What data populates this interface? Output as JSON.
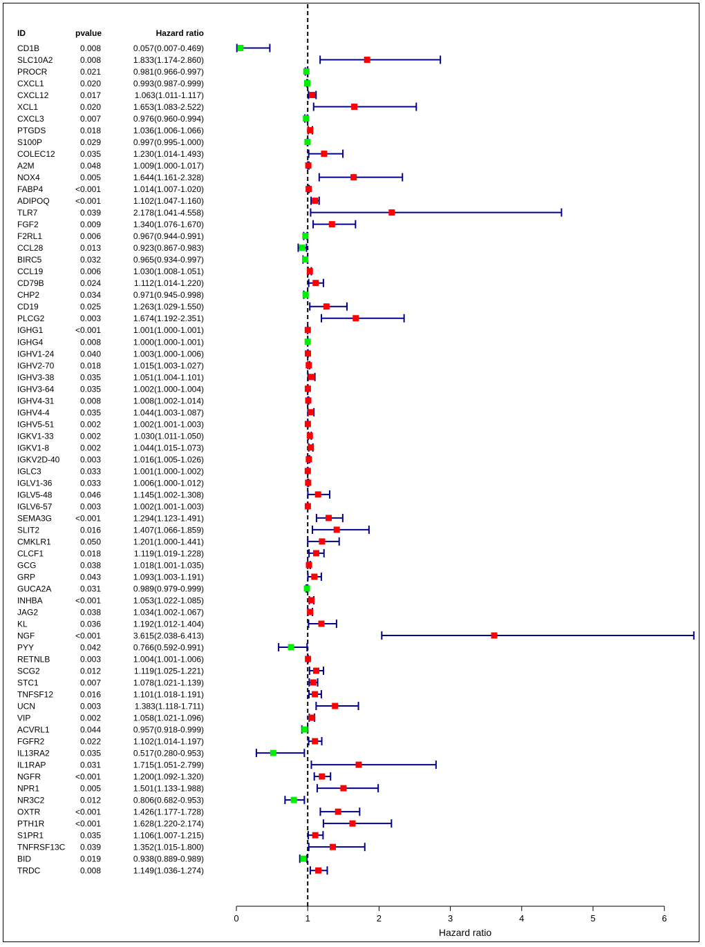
{
  "chart_data": {
    "type": "forest",
    "xlabel": "Hazard ratio",
    "xlim": [
      0,
      6.5
    ],
    "xticks": [
      0,
      1,
      2,
      3,
      4,
      5,
      6
    ],
    "xtick_labels": [
      "0",
      "1",
      "2",
      "3",
      "4",
      "5",
      "6"
    ],
    "reference_line": 1,
    "headers": {
      "id": "ID",
      "pvalue": "pvalue",
      "hr": "Hazard ratio"
    },
    "colors": {
      "risk": "#ff0000",
      "protective": "#00ee00",
      "ci": "#00008b",
      "text": "#000000"
    },
    "rows": [
      {
        "id": "CD1B",
        "pvalue": "0.008",
        "hr_text": "0.057(0.007-0.469)",
        "hr": 0.057,
        "lo": 0.007,
        "hi": 0.469
      },
      {
        "id": "SLC10A2",
        "pvalue": "0.008",
        "hr_text": "1.833(1.174-2.860)",
        "hr": 1.833,
        "lo": 1.174,
        "hi": 2.86
      },
      {
        "id": "PROCR",
        "pvalue": "0.021",
        "hr_text": "0.981(0.966-0.997)",
        "hr": 0.981,
        "lo": 0.966,
        "hi": 0.997
      },
      {
        "id": "CXCL1",
        "pvalue": "0.020",
        "hr_text": "0.993(0.987-0.999)",
        "hr": 0.993,
        "lo": 0.987,
        "hi": 0.999
      },
      {
        "id": "CXCL12",
        "pvalue": "0.017",
        "hr_text": "1.063(1.011-1.117)",
        "hr": 1.063,
        "lo": 1.011,
        "hi": 1.117
      },
      {
        "id": "XCL1",
        "pvalue": "0.020",
        "hr_text": "1.653(1.083-2.522)",
        "hr": 1.653,
        "lo": 1.083,
        "hi": 2.522
      },
      {
        "id": "CXCL3",
        "pvalue": "0.007",
        "hr_text": "0.976(0.960-0.994)",
        "hr": 0.976,
        "lo": 0.96,
        "hi": 0.994
      },
      {
        "id": "PTGDS",
        "pvalue": "0.018",
        "hr_text": "1.036(1.006-1.066)",
        "hr": 1.036,
        "lo": 1.006,
        "hi": 1.066
      },
      {
        "id": "S100P",
        "pvalue": "0.029",
        "hr_text": "0.997(0.995-1.000)",
        "hr": 0.997,
        "lo": 0.995,
        "hi": 1.0
      },
      {
        "id": "COLEC12",
        "pvalue": "0.035",
        "hr_text": "1.230(1.014-1.493)",
        "hr": 1.23,
        "lo": 1.014,
        "hi": 1.493
      },
      {
        "id": "A2M",
        "pvalue": "0.048",
        "hr_text": "1.009(1.000-1.017)",
        "hr": 1.009,
        "lo": 1.0,
        "hi": 1.017
      },
      {
        "id": "NOX4",
        "pvalue": "0.005",
        "hr_text": "1.644(1.161-2.328)",
        "hr": 1.644,
        "lo": 1.161,
        "hi": 2.328
      },
      {
        "id": "FABP4",
        "pvalue": "<0.001",
        "hr_text": "1.014(1.007-1.020)",
        "hr": 1.014,
        "lo": 1.007,
        "hi": 1.02
      },
      {
        "id": "ADIPOQ",
        "pvalue": "<0.001",
        "hr_text": "1.102(1.047-1.160)",
        "hr": 1.102,
        "lo": 1.047,
        "hi": 1.16
      },
      {
        "id": "TLR7",
        "pvalue": "0.039",
        "hr_text": "2.178(1.041-4.558)",
        "hr": 2.178,
        "lo": 1.041,
        "hi": 4.558
      },
      {
        "id": "FGF2",
        "pvalue": "0.009",
        "hr_text": "1.340(1.076-1.670)",
        "hr": 1.34,
        "lo": 1.076,
        "hi": 1.67
      },
      {
        "id": "F2RL1",
        "pvalue": "0.006",
        "hr_text": "0.967(0.944-0.991)",
        "hr": 0.967,
        "lo": 0.944,
        "hi": 0.991
      },
      {
        "id": "CCL28",
        "pvalue": "0.013",
        "hr_text": "0.923(0.867-0.983)",
        "hr": 0.923,
        "lo": 0.867,
        "hi": 0.983
      },
      {
        "id": "BIRC5",
        "pvalue": "0.032",
        "hr_text": "0.965(0.934-0.997)",
        "hr": 0.965,
        "lo": 0.934,
        "hi": 0.997
      },
      {
        "id": "CCL19",
        "pvalue": "0.006",
        "hr_text": "1.030(1.008-1.051)",
        "hr": 1.03,
        "lo": 1.008,
        "hi": 1.051
      },
      {
        "id": "CD79B",
        "pvalue": "0.024",
        "hr_text": "1.112(1.014-1.220)",
        "hr": 1.112,
        "lo": 1.014,
        "hi": 1.22
      },
      {
        "id": "CHP2",
        "pvalue": "0.034",
        "hr_text": "0.971(0.945-0.998)",
        "hr": 0.971,
        "lo": 0.945,
        "hi": 0.998
      },
      {
        "id": "CD19",
        "pvalue": "0.025",
        "hr_text": "1.263(1.029-1.550)",
        "hr": 1.263,
        "lo": 1.029,
        "hi": 1.55
      },
      {
        "id": "PLCG2",
        "pvalue": "0.003",
        "hr_text": "1.674(1.192-2.351)",
        "hr": 1.674,
        "lo": 1.192,
        "hi": 2.351
      },
      {
        "id": "IGHG1",
        "pvalue": "<0.001",
        "hr_text": "1.001(1.000-1.001)",
        "hr": 1.001,
        "lo": 1.0,
        "hi": 1.001
      },
      {
        "id": "IGHG4",
        "pvalue": "0.008",
        "hr_text": "1.000(1.000-1.001)",
        "hr": 1.0,
        "lo": 1.0,
        "hi": 1.001
      },
      {
        "id": "IGHV1-24",
        "pvalue": "0.040",
        "hr_text": "1.003(1.000-1.006)",
        "hr": 1.003,
        "lo": 1.0,
        "hi": 1.006
      },
      {
        "id": "IGHV2-70",
        "pvalue": "0.018",
        "hr_text": "1.015(1.003-1.027)",
        "hr": 1.015,
        "lo": 1.003,
        "hi": 1.027
      },
      {
        "id": "IGHV3-38",
        "pvalue": "0.035",
        "hr_text": "1.051(1.004-1.101)",
        "hr": 1.051,
        "lo": 1.004,
        "hi": 1.101
      },
      {
        "id": "IGHV3-64",
        "pvalue": "0.035",
        "hr_text": "1.002(1.000-1.004)",
        "hr": 1.002,
        "lo": 1.0,
        "hi": 1.004
      },
      {
        "id": "IGHV4-31",
        "pvalue": "0.008",
        "hr_text": "1.008(1.002-1.014)",
        "hr": 1.008,
        "lo": 1.002,
        "hi": 1.014
      },
      {
        "id": "IGHV4-4",
        "pvalue": "0.035",
        "hr_text": "1.044(1.003-1.087)",
        "hr": 1.044,
        "lo": 1.003,
        "hi": 1.087
      },
      {
        "id": "IGHV5-51",
        "pvalue": "0.002",
        "hr_text": "1.002(1.001-1.003)",
        "hr": 1.002,
        "lo": 1.001,
        "hi": 1.003
      },
      {
        "id": "IGKV1-33",
        "pvalue": "0.002",
        "hr_text": "1.030(1.011-1.050)",
        "hr": 1.03,
        "lo": 1.011,
        "hi": 1.05
      },
      {
        "id": "IGKV1-8",
        "pvalue": "0.002",
        "hr_text": "1.044(1.015-1.073)",
        "hr": 1.044,
        "lo": 1.015,
        "hi": 1.073
      },
      {
        "id": "IGKV2D-40",
        "pvalue": "0.003",
        "hr_text": "1.016(1.005-1.026)",
        "hr": 1.016,
        "lo": 1.005,
        "hi": 1.026
      },
      {
        "id": "IGLC3",
        "pvalue": "0.033",
        "hr_text": "1.001(1.000-1.002)",
        "hr": 1.001,
        "lo": 1.0,
        "hi": 1.002
      },
      {
        "id": "IGLV1-36",
        "pvalue": "0.033",
        "hr_text": "1.006(1.000-1.012)",
        "hr": 1.006,
        "lo": 1.0,
        "hi": 1.012
      },
      {
        "id": "IGLV5-48",
        "pvalue": "0.046",
        "hr_text": "1.145(1.002-1.308)",
        "hr": 1.145,
        "lo": 1.002,
        "hi": 1.308
      },
      {
        "id": "IGLV6-57",
        "pvalue": "0.003",
        "hr_text": "1.002(1.001-1.003)",
        "hr": 1.002,
        "lo": 1.001,
        "hi": 1.003
      },
      {
        "id": "SEMA3G",
        "pvalue": "<0.001",
        "hr_text": "1.294(1.123-1.491)",
        "hr": 1.294,
        "lo": 1.123,
        "hi": 1.491
      },
      {
        "id": "SLIT2",
        "pvalue": "0.016",
        "hr_text": "1.407(1.066-1.859)",
        "hr": 1.407,
        "lo": 1.066,
        "hi": 1.859
      },
      {
        "id": "CMKLR1",
        "pvalue": "0.050",
        "hr_text": "1.201(1.000-1.441)",
        "hr": 1.201,
        "lo": 1.0,
        "hi": 1.441
      },
      {
        "id": "CLCF1",
        "pvalue": "0.018",
        "hr_text": "1.119(1.019-1.228)",
        "hr": 1.119,
        "lo": 1.019,
        "hi": 1.228
      },
      {
        "id": "GCG",
        "pvalue": "0.038",
        "hr_text": "1.018(1.001-1.035)",
        "hr": 1.018,
        "lo": 1.001,
        "hi": 1.035
      },
      {
        "id": "GRP",
        "pvalue": "0.043",
        "hr_text": "1.093(1.003-1.191)",
        "hr": 1.093,
        "lo": 1.003,
        "hi": 1.191
      },
      {
        "id": "GUCA2A",
        "pvalue": "0.031",
        "hr_text": "0.989(0.979-0.999)",
        "hr": 0.989,
        "lo": 0.979,
        "hi": 0.999
      },
      {
        "id": "INHBA",
        "pvalue": "<0.001",
        "hr_text": "1.053(1.022-1.085)",
        "hr": 1.053,
        "lo": 1.022,
        "hi": 1.085
      },
      {
        "id": "JAG2",
        "pvalue": "0.038",
        "hr_text": "1.034(1.002-1.067)",
        "hr": 1.034,
        "lo": 1.002,
        "hi": 1.067
      },
      {
        "id": "KL",
        "pvalue": "0.036",
        "hr_text": "1.192(1.012-1.404)",
        "hr": 1.192,
        "lo": 1.012,
        "hi": 1.404
      },
      {
        "id": "NGF",
        "pvalue": "<0.001",
        "hr_text": "3.615(2.038-6.413)",
        "hr": 3.615,
        "lo": 2.038,
        "hi": 6.413
      },
      {
        "id": "PYY",
        "pvalue": "0.042",
        "hr_text": "0.766(0.592-0.991)",
        "hr": 0.766,
        "lo": 0.592,
        "hi": 0.991
      },
      {
        "id": "RETNLB",
        "pvalue": "0.003",
        "hr_text": "1.004(1.001-1.006)",
        "hr": 1.004,
        "lo": 1.001,
        "hi": 1.006
      },
      {
        "id": "SCG2",
        "pvalue": "0.012",
        "hr_text": "1.119(1.025-1.221)",
        "hr": 1.119,
        "lo": 1.025,
        "hi": 1.221
      },
      {
        "id": "STC1",
        "pvalue": "0.007",
        "hr_text": "1.078(1.021-1.139)",
        "hr": 1.078,
        "lo": 1.021,
        "hi": 1.139
      },
      {
        "id": "TNFSF12",
        "pvalue": "0.016",
        "hr_text": "1.101(1.018-1.191)",
        "hr": 1.101,
        "lo": 1.018,
        "hi": 1.191
      },
      {
        "id": "UCN",
        "pvalue": "0.003",
        "hr_text": "1.383(1.118-1.711)",
        "hr": 1.383,
        "lo": 1.118,
        "hi": 1.711
      },
      {
        "id": "VIP",
        "pvalue": "0.002",
        "hr_text": "1.058(1.021-1.096)",
        "hr": 1.058,
        "lo": 1.021,
        "hi": 1.096
      },
      {
        "id": "ACVRL1",
        "pvalue": "0.044",
        "hr_text": "0.957(0.918-0.999)",
        "hr": 0.957,
        "lo": 0.918,
        "hi": 0.999
      },
      {
        "id": "FGFR2",
        "pvalue": "0.022",
        "hr_text": "1.102(1.014-1.197)",
        "hr": 1.102,
        "lo": 1.014,
        "hi": 1.197
      },
      {
        "id": "IL13RA2",
        "pvalue": "0.035",
        "hr_text": "0.517(0.280-0.953)",
        "hr": 0.517,
        "lo": 0.28,
        "hi": 0.953
      },
      {
        "id": "IL1RAP",
        "pvalue": "0.031",
        "hr_text": "1.715(1.051-2.799)",
        "hr": 1.715,
        "lo": 1.051,
        "hi": 2.799
      },
      {
        "id": "NGFR",
        "pvalue": "<0.001",
        "hr_text": "1.200(1.092-1.320)",
        "hr": 1.2,
        "lo": 1.092,
        "hi": 1.32
      },
      {
        "id": "NPR1",
        "pvalue": "0.005",
        "hr_text": "1.501(1.133-1.988)",
        "hr": 1.501,
        "lo": 1.133,
        "hi": 1.988
      },
      {
        "id": "NR3C2",
        "pvalue": "0.012",
        "hr_text": "0.806(0.682-0.953)",
        "hr": 0.806,
        "lo": 0.682,
        "hi": 0.953
      },
      {
        "id": "OXTR",
        "pvalue": "<0.001",
        "hr_text": "1.426(1.177-1.728)",
        "hr": 1.426,
        "lo": 1.177,
        "hi": 1.728
      },
      {
        "id": "PTH1R",
        "pvalue": "<0.001",
        "hr_text": "1.628(1.220-2.174)",
        "hr": 1.628,
        "lo": 1.22,
        "hi": 2.174
      },
      {
        "id": "S1PR1",
        "pvalue": "0.035",
        "hr_text": "1.106(1.007-1.215)",
        "hr": 1.106,
        "lo": 1.007,
        "hi": 1.215
      },
      {
        "id": "TNFRSF13C",
        "pvalue": "0.039",
        "hr_text": "1.352(1.015-1.800)",
        "hr": 1.352,
        "lo": 1.015,
        "hi": 1.8
      },
      {
        "id": "BID",
        "pvalue": "0.019",
        "hr_text": "0.938(0.889-0.989)",
        "hr": 0.938,
        "lo": 0.889,
        "hi": 0.989
      },
      {
        "id": "TRDC",
        "pvalue": "0.008",
        "hr_text": "1.149(1.036-1.274)",
        "hr": 1.149,
        "lo": 1.036,
        "hi": 1.274
      }
    ]
  }
}
